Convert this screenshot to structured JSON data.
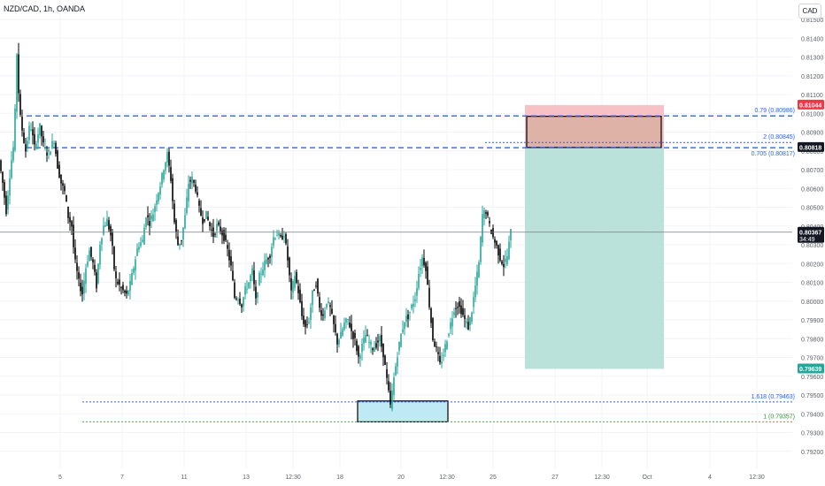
{
  "header": {
    "title": "NZD/CAD, 1h, OANDA",
    "currency": "CAD"
  },
  "colors": {
    "up": "#26a69a",
    "down": "#000000",
    "fib_line": "#2962ff",
    "green_dotted": "#4caf50",
    "stop_zone": "#f7b6bb",
    "profit_zone": "#b2dfd6",
    "target_label": "#26a69a",
    "stop_label": "#f23645",
    "price_label": "#131722",
    "demand_box": "#bfeaf5"
  },
  "chart_data": {
    "type": "candlestick",
    "symbol": "NZD/CAD",
    "timeframe": "1h",
    "broker": "OANDA",
    "y_axis": {
      "range": [
        0.791,
        0.816
      ],
      "ticks": [
        "0.81500",
        "0.81400",
        "0.81300",
        "0.81200",
        "0.81100",
        "0.81000",
        "0.80900",
        "0.80800",
        "0.80700",
        "0.80600",
        "0.80500",
        "0.80400",
        "0.80300",
        "0.80200",
        "0.80100",
        "0.80000",
        "0.79900",
        "0.79800",
        "0.79700",
        "0.79600",
        "0.79500",
        "0.79400",
        "0.79300",
        "0.79200"
      ]
    },
    "x_axis": {
      "ticks": [
        "5",
        "7",
        "11",
        "13",
        "12:30",
        "18",
        "20",
        "12:30",
        "25",
        "27",
        "12:30",
        "Oct",
        "4",
        "12:30"
      ]
    },
    "price_path": [
      [
        0,
        0.8075
      ],
      [
        4,
        0.8063
      ],
      [
        8,
        0.8048
      ],
      [
        13,
        0.8072
      ],
      [
        17,
        0.8085
      ],
      [
        20,
        0.8132
      ],
      [
        23,
        0.8101
      ],
      [
        27,
        0.8088
      ],
      [
        30,
        0.808
      ],
      [
        35,
        0.8095
      ],
      [
        40,
        0.8082
      ],
      [
        46,
        0.8093
      ],
      [
        50,
        0.8083
      ],
      [
        55,
        0.8078
      ],
      [
        62,
        0.8086
      ],
      [
        66,
        0.8072
      ],
      [
        70,
        0.8063
      ],
      [
        74,
        0.8058
      ],
      [
        78,
        0.8045
      ],
      [
        82,
        0.804
      ],
      [
        85,
        0.8023
      ],
      [
        90,
        0.801
      ],
      [
        94,
        0.8004
      ],
      [
        98,
        0.8018
      ],
      [
        102,
        0.8027
      ],
      [
        106,
        0.802
      ],
      [
        110,
        0.8008
      ],
      [
        114,
        0.8031
      ],
      [
        118,
        0.804
      ],
      [
        122,
        0.8043
      ],
      [
        127,
        0.8033
      ],
      [
        131,
        0.8012
      ],
      [
        135,
        0.8009
      ],
      [
        139,
        0.8006
      ],
      [
        144,
        0.8003
      ],
      [
        148,
        0.8009
      ],
      [
        152,
        0.8018
      ],
      [
        157,
        0.803
      ],
      [
        162,
        0.8032
      ],
      [
        166,
        0.8046
      ],
      [
        170,
        0.8042
      ],
      [
        174,
        0.8047
      ],
      [
        178,
        0.8055
      ],
      [
        182,
        0.8062
      ],
      [
        186,
        0.8071
      ],
      [
        190,
        0.8078
      ],
      [
        194,
        0.8065
      ],
      [
        198,
        0.8042
      ],
      [
        202,
        0.803
      ],
      [
        206,
        0.8033
      ],
      [
        210,
        0.8045
      ],
      [
        214,
        0.8063
      ],
      [
        218,
        0.8065
      ],
      [
        222,
        0.806
      ],
      [
        226,
        0.8049
      ],
      [
        230,
        0.8043
      ],
      [
        234,
        0.8046
      ],
      [
        238,
        0.804
      ],
      [
        242,
        0.8035
      ],
      [
        246,
        0.804
      ],
      [
        250,
        0.8038
      ],
      [
        254,
        0.8034
      ],
      [
        258,
        0.8027
      ],
      [
        262,
        0.8018
      ],
      [
        266,
        0.8002
      ],
      [
        270,
        0.8002
      ],
      [
        274,
        0.7998
      ],
      [
        278,
        0.8006
      ],
      [
        282,
        0.801
      ],
      [
        286,
        0.8016
      ],
      [
        290,
        0.8
      ],
      [
        294,
        0.8013
      ],
      [
        298,
        0.8018
      ],
      [
        302,
        0.8022
      ],
      [
        306,
        0.8025
      ],
      [
        310,
        0.8034
      ],
      [
        314,
        0.8036
      ],
      [
        318,
        0.8033
      ],
      [
        322,
        0.8036
      ],
      [
        326,
        0.8022
      ],
      [
        330,
        0.8004
      ],
      [
        334,
        0.8014
      ],
      [
        338,
        0.8005
      ],
      [
        342,
        0.7992
      ],
      [
        346,
        0.7986
      ],
      [
        350,
        0.799
      ],
      [
        354,
        0.8004
      ],
      [
        358,
        0.801
      ],
      [
        362,
        0.7996
      ],
      [
        366,
        0.7992
      ],
      [
        370,
        0.8
      ],
      [
        374,
        0.7996
      ],
      [
        378,
        0.7987
      ],
      [
        382,
        0.7978
      ],
      [
        386,
        0.7982
      ],
      [
        390,
        0.7988
      ],
      [
        394,
        0.799
      ],
      [
        398,
        0.7984
      ],
      [
        402,
        0.7979
      ],
      [
        406,
        0.797
      ],
      [
        410,
        0.7976
      ],
      [
        414,
        0.7982
      ],
      [
        418,
        0.7978
      ],
      [
        422,
        0.7975
      ],
      [
        426,
        0.7977
      ],
      [
        430,
        0.798
      ],
      [
        434,
        0.7972
      ],
      [
        438,
        0.7958
      ],
      [
        442,
        0.7944
      ],
      [
        446,
        0.7959
      ],
      [
        450,
        0.7972
      ],
      [
        454,
        0.7982
      ],
      [
        458,
        0.799
      ],
      [
        462,
        0.7992
      ],
      [
        466,
        0.7997
      ],
      [
        470,
        0.8002
      ],
      [
        474,
        0.8015
      ],
      [
        478,
        0.8023
      ],
      [
        482,
        0.8018
      ],
      [
        486,
        0.7998
      ],
      [
        490,
        0.798
      ],
      [
        494,
        0.7974
      ],
      [
        498,
        0.7966
      ],
      [
        502,
        0.7972
      ],
      [
        506,
        0.798
      ],
      [
        510,
        0.7988
      ],
      [
        514,
        0.7996
      ],
      [
        518,
        0.7998
      ],
      [
        522,
        0.7995
      ],
      [
        526,
        0.799
      ],
      [
        530,
        0.7986
      ],
      [
        534,
        0.7995
      ],
      [
        538,
        0.8008
      ],
      [
        542,
        0.802
      ],
      [
        546,
        0.8046
      ],
      [
        550,
        0.8048
      ],
      [
        554,
        0.804
      ],
      [
        558,
        0.8034
      ],
      [
        562,
        0.8029
      ],
      [
        566,
        0.8023
      ],
      [
        570,
        0.8019
      ],
      [
        574,
        0.8024
      ],
      [
        578,
        0.8037
      ]
    ],
    "levels": [
      {
        "label": "0.79 (0.80986)",
        "price": 0.80986,
        "style": "dashed"
      },
      {
        "label": "2 (0.80845)",
        "price": 0.80845,
        "style": "dotted"
      },
      {
        "label": "0.705 (0.80817)",
        "price": 0.80817,
        "style": "dashed"
      },
      {
        "label": "1.618 (0.79463)",
        "price": 0.79463,
        "style": "dotted"
      },
      {
        "label": "1 (0.79357)",
        "price": 0.79357,
        "style": "dotted-green"
      }
    ],
    "position": {
      "type": "short",
      "entry": 0.80818,
      "stop": 0.81044,
      "target": 0.79639
    },
    "zones": [
      {
        "name": "supply",
        "top": 0.80984,
        "bottom": 0.80818
      },
      {
        "name": "demand",
        "top": 0.79468,
        "bottom": 0.79357
      }
    ],
    "price_labels": {
      "stop": "0.81044",
      "entry": "0.80818",
      "current": "0.80367",
      "countdown": "34:49",
      "target": "0.79639"
    },
    "current_price": 0.80367
  }
}
